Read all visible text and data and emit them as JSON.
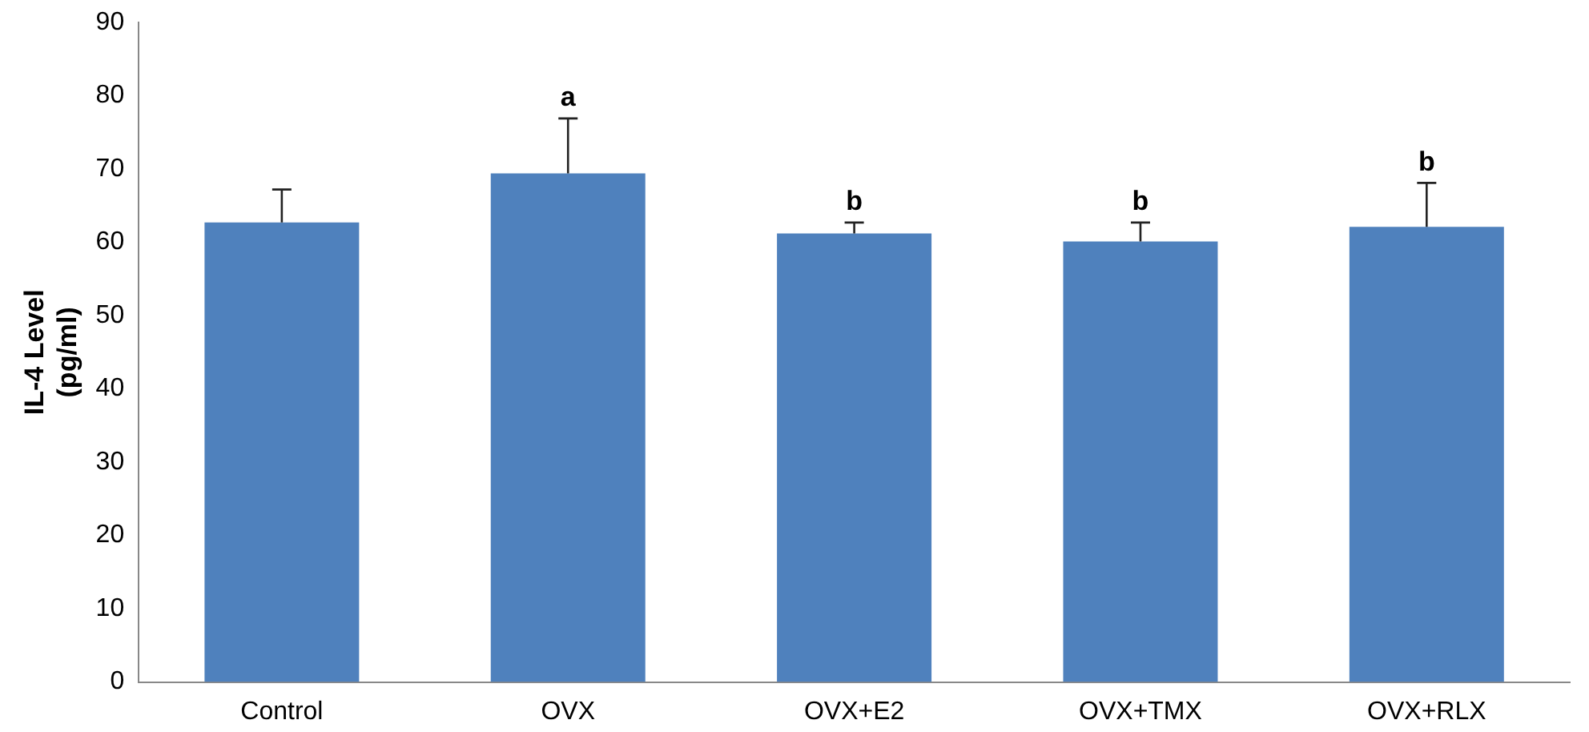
{
  "chart_data": {
    "type": "bar",
    "ylabel": "IL-4 Level\n(pg/ml)",
    "categories": [
      "Control",
      "OVX",
      "OVX+E2",
      "OVX+TMX",
      "OVX+RLX"
    ],
    "values": [
      62.7,
      69.4,
      61.2,
      60.1,
      62.1
    ],
    "errors": [
      [
        62.7,
        67.2
      ],
      [
        69.4,
        76.9
      ],
      [
        61.2,
        62.7
      ],
      [
        60.1,
        62.7
      ],
      [
        62.1,
        68.1
      ]
    ],
    "color": "#4f81bd",
    "ylim": [
      0,
      90
    ],
    "yticks": [
      0,
      10,
      20,
      30,
      40,
      50,
      60,
      70,
      80,
      90
    ],
    "grid": false,
    "legend": false,
    "annotations": [
      "a",
      "b",
      "b",
      "b"
    ]
  }
}
